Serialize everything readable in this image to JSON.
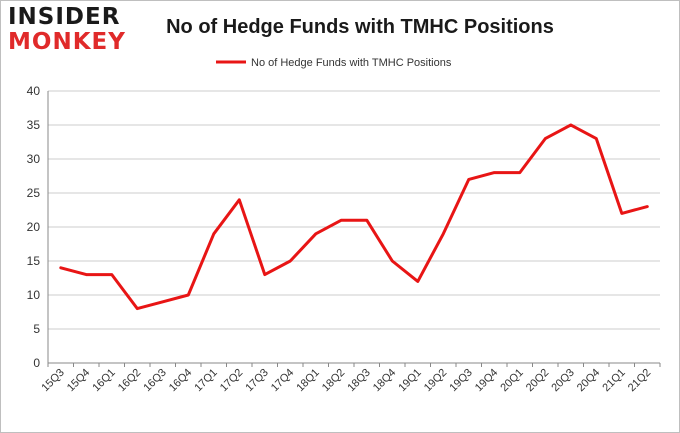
{
  "logo": {
    "line1": "INSIDER",
    "line2": "MONKEY"
  },
  "colors": {
    "series": "#e81515",
    "grid": "#cccccc",
    "axis": "#888888"
  },
  "chart_data": {
    "type": "line",
    "title": "No of Hedge Funds with TMHC Positions",
    "xlabel": "",
    "ylabel": "",
    "ylim": [
      0,
      40
    ],
    "yticks": [
      0,
      5,
      10,
      15,
      20,
      25,
      30,
      35,
      40
    ],
    "grid": true,
    "legend_position": "top-center",
    "categories": [
      "15Q3",
      "15Q4",
      "16Q1",
      "16Q2",
      "16Q3",
      "16Q4",
      "17Q1",
      "17Q2",
      "17Q3",
      "17Q4",
      "18Q1",
      "18Q2",
      "18Q3",
      "18Q4",
      "19Q1",
      "19Q2",
      "19Q3",
      "19Q4",
      "20Q1",
      "20Q2",
      "20Q3",
      "20Q4",
      "21Q1",
      "21Q2"
    ],
    "series": [
      {
        "name": "No of Hedge Funds with TMHC Positions",
        "values": [
          14,
          13,
          13,
          8,
          9,
          10,
          19,
          24,
          13,
          15,
          19,
          21,
          21,
          15,
          12,
          19,
          27,
          28,
          28,
          33,
          35,
          33,
          22,
          23
        ]
      }
    ]
  }
}
